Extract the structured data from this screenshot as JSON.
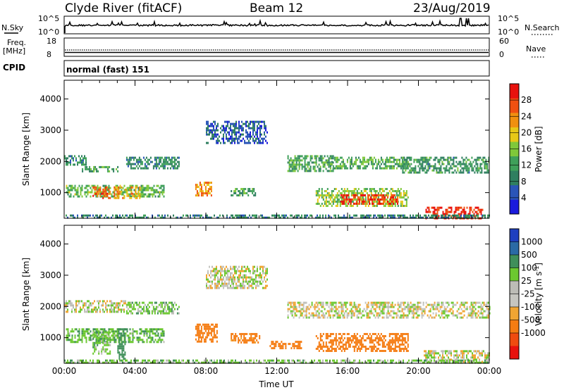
{
  "header": {
    "station": "Clyde River (fitACF)",
    "beam": "Beam 12",
    "date": "23/Aug/2019"
  },
  "nsky_panel": {
    "left_label": "N.Sky",
    "right_label": "N.Search",
    "top_tick": "10^5",
    "bottom_tick": "10^0",
    "right_top_tick": "10^5",
    "right_bottom_tick": "10^0"
  },
  "freq_panel": {
    "left_label_1": "Freq.",
    "left_label_2": "[MHz]",
    "left_top_tick": "18",
    "left_bottom_tick": "8",
    "right_label": "Nave",
    "right_top_tick": "60",
    "right_bottom_tick": "0"
  },
  "cpid": {
    "label": "CPID",
    "value": "normal (fast) 151"
  },
  "colors": {
    "power_scale": [
      "#1a1adc",
      "#2a55b8",
      "#2f7f60",
      "#3fa05a",
      "#7fc83a",
      "#e6c817",
      "#f0900f",
      "#ef5010",
      "#e8120e"
    ],
    "velocity_scale": [
      "#e8120e",
      "#ef4b10",
      "#f57c12",
      "#f0a533",
      "#c6c6c0",
      "#bcbcb6",
      "#6cc830",
      "#3f8f5a",
      "#2a6aa5",
      "#1e3fbf"
    ]
  },
  "chart_data": [
    {
      "type": "heatmap",
      "title": "",
      "xlabel": "",
      "ylabel": "Slant Range [km]",
      "yticks": [
        "1000",
        "2000",
        "3000",
        "4000"
      ],
      "ylim": [
        180,
        4600
      ],
      "xlim_hours": [
        0,
        24
      ],
      "colorbar_label": "Power [dB]",
      "colorbar_ticks": [
        "4",
        "8",
        "12",
        "16",
        "20",
        "24",
        "28"
      ],
      "colorbar_range": [
        0,
        32
      ],
      "regions": [
        {
          "t0": 0.1,
          "t1": 5.6,
          "r0": 850,
          "r1": 1250,
          "value": 14
        },
        {
          "t0": 1.6,
          "t1": 2.6,
          "r0": 800,
          "r1": 1200,
          "value": 26
        },
        {
          "t0": 2.8,
          "t1": 4.3,
          "r0": 850,
          "r1": 1200,
          "value": 22
        },
        {
          "t0": 7.4,
          "t1": 8.3,
          "r0": 900,
          "r1": 1350,
          "value": 24
        },
        {
          "t0": 9.4,
          "t1": 10.9,
          "r0": 900,
          "r1": 1150,
          "value": 12
        },
        {
          "t0": 14.2,
          "t1": 19.4,
          "r0": 600,
          "r1": 1150,
          "value": 16
        },
        {
          "t0": 15.6,
          "t1": 18.8,
          "r0": 650,
          "r1": 950,
          "value": 28
        },
        {
          "t0": 20.4,
          "t1": 23.6,
          "r0": 200,
          "r1": 550,
          "value": 29
        },
        {
          "t0": 0.0,
          "t1": 1.2,
          "r0": 1900,
          "r1": 2200,
          "value": 10
        },
        {
          "t0": 1.0,
          "t1": 3.0,
          "r0": 1650,
          "r1": 1850,
          "value": 12
        },
        {
          "t0": 3.5,
          "t1": 6.5,
          "r0": 1800,
          "r1": 2150,
          "value": 10
        },
        {
          "t0": 12.6,
          "t1": 15.2,
          "r0": 1700,
          "r1": 2200,
          "value": 12
        },
        {
          "t0": 15.0,
          "t1": 19.5,
          "r0": 1800,
          "r1": 2150,
          "value": 13
        },
        {
          "t0": 19.0,
          "t1": 24.0,
          "r0": 1650,
          "r1": 2150,
          "value": 11
        },
        {
          "t0": 8.0,
          "t1": 11.5,
          "r0": 2600,
          "r1": 3300,
          "value": 6
        },
        {
          "t0": 0.0,
          "t1": 24.0,
          "r0": 180,
          "r1": 300,
          "value": 9
        }
      ]
    },
    {
      "type": "heatmap",
      "title": "",
      "xlabel": "Time UT",
      "ylabel": "Slant Range [km]",
      "yticks": [
        "1000",
        "2000",
        "3000",
        "4000"
      ],
      "ylim": [
        180,
        4600
      ],
      "xticks": [
        "00:00",
        "04:00",
        "08:00",
        "12:00",
        "16:00",
        "20:00",
        "00:00"
      ],
      "xlim_hours": [
        0,
        24
      ],
      "colorbar_label": "Velocity [m s^-1]",
      "colorbar_ticks": [
        "1000",
        "500",
        "100",
        "25",
        "-25",
        "-100",
        "-500",
        "-1000"
      ],
      "colorbar_range": [
        -1000,
        1000
      ],
      "regions": [
        {
          "t0": 0.1,
          "t1": 5.6,
          "r0": 850,
          "r1": 1300,
          "value": 80
        },
        {
          "t0": 1.6,
          "t1": 2.6,
          "r0": 500,
          "r1": 1200,
          "value": 60
        },
        {
          "t0": 3.0,
          "t1": 3.4,
          "r0": 300,
          "r1": 1300,
          "value": 200
        },
        {
          "t0": 7.4,
          "t1": 8.6,
          "r0": 900,
          "r1": 1450,
          "value": -200
        },
        {
          "t0": 9.4,
          "t1": 11.0,
          "r0": 850,
          "r1": 1150,
          "value": -150
        },
        {
          "t0": 11.6,
          "t1": 13.4,
          "r0": 650,
          "r1": 900,
          "value": -180
        },
        {
          "t0": 14.2,
          "t1": 19.4,
          "r0": 600,
          "r1": 1150,
          "value": -300
        },
        {
          "t0": 20.3,
          "t1": 24.0,
          "r0": 200,
          "r1": 600,
          "value": 0
        },
        {
          "t0": 0.0,
          "t1": 3.5,
          "r0": 1800,
          "r1": 2200,
          "value": 0
        },
        {
          "t0": 3.5,
          "t1": 6.5,
          "r0": 1800,
          "r1": 2150,
          "value": 60
        },
        {
          "t0": 12.6,
          "t1": 24.0,
          "r0": 1650,
          "r1": 2150,
          "value": 0
        },
        {
          "t0": 8.0,
          "t1": 11.5,
          "r0": 2600,
          "r1": 3300,
          "value": 0
        },
        {
          "t0": 0.0,
          "t1": 24.0,
          "r0": 180,
          "r1": 300,
          "value": 60
        }
      ]
    }
  ]
}
